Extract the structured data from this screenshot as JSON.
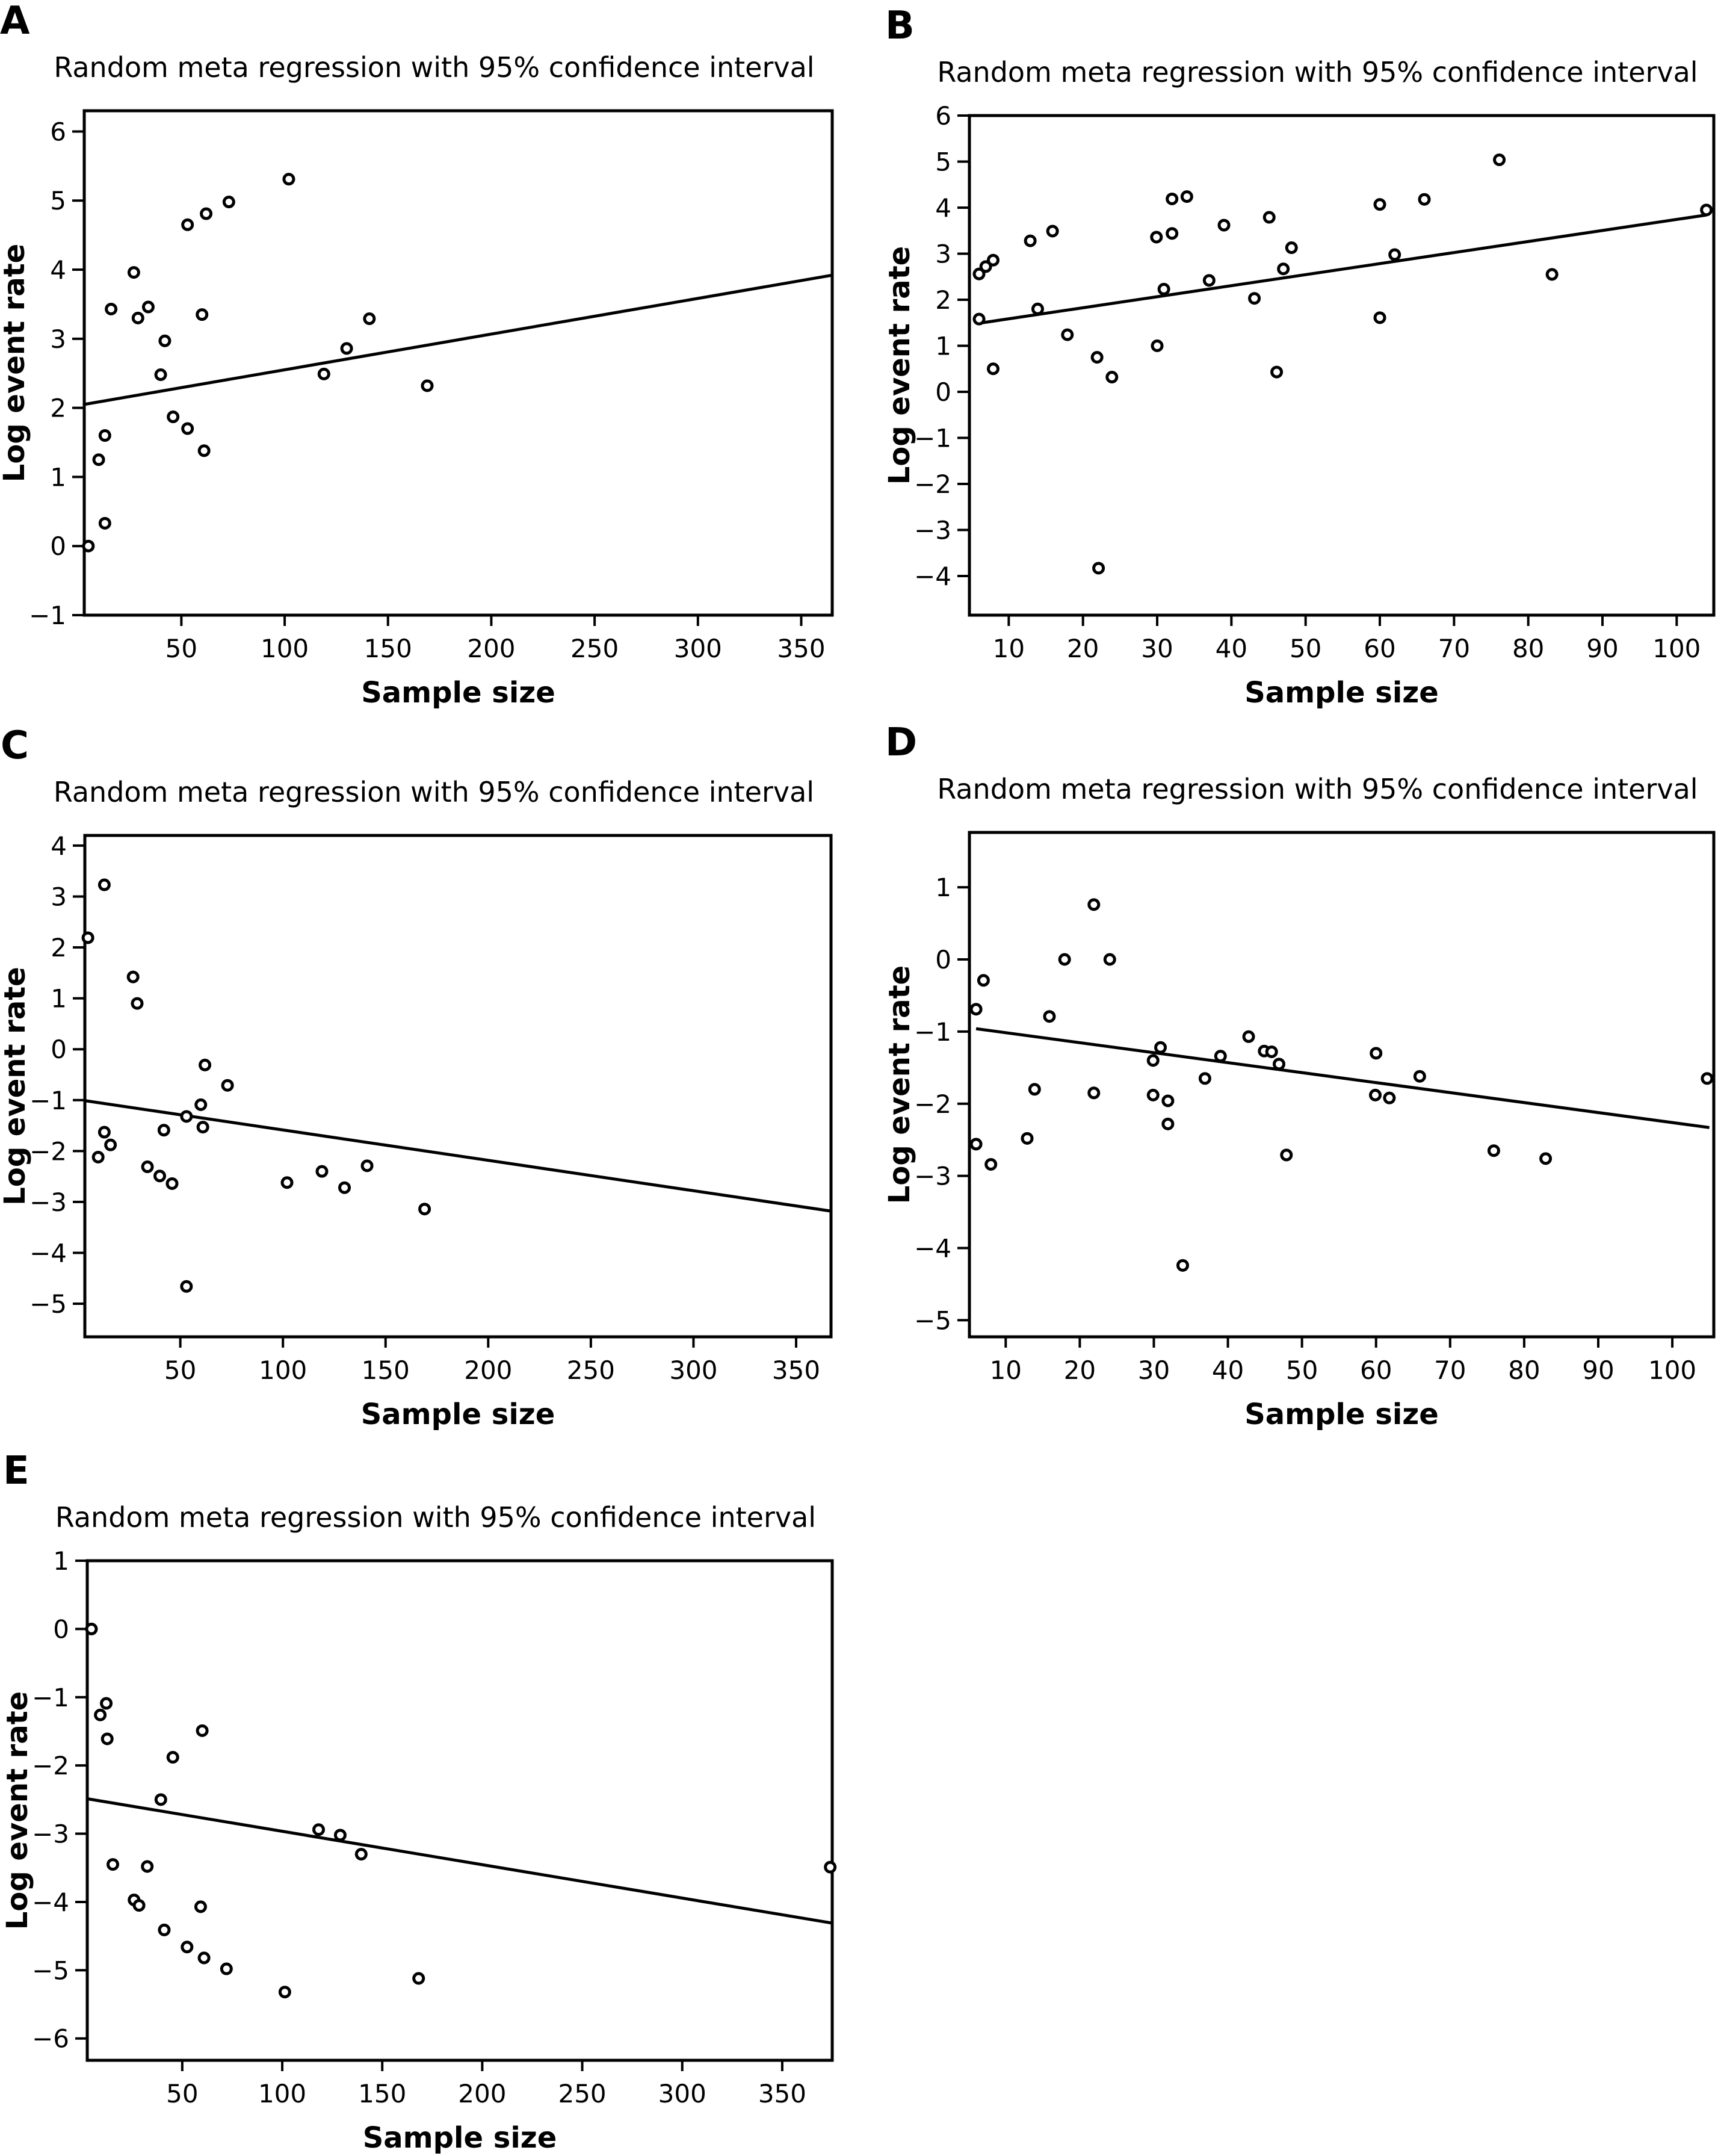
{
  "chart_data": [
    {
      "panel": "A",
      "type": "scatter",
      "title": "Random meta regression with 95% confidence interval",
      "xlabel": "Sample size",
      "ylabel": "Log event rate",
      "xlim": [
        3,
        365
      ],
      "ylim": [
        -1,
        6.3
      ],
      "xticks": [
        50,
        100,
        150,
        200,
        250,
        300,
        350
      ],
      "yticks": [
        -1,
        0,
        1,
        2,
        3,
        4,
        5,
        6
      ],
      "grid": false,
      "points": [
        [
          5,
          0
        ],
        [
          10,
          1.25
        ],
        [
          13,
          1.6
        ],
        [
          13,
          0.33
        ],
        [
          16,
          3.43
        ],
        [
          27,
          3.96
        ],
        [
          29,
          3.3
        ],
        [
          34,
          3.46
        ],
        [
          40,
          2.48
        ],
        [
          42,
          2.97
        ],
        [
          46,
          1.87
        ],
        [
          53,
          4.65
        ],
        [
          53,
          1.7
        ],
        [
          60,
          3.35
        ],
        [
          62,
          4.81
        ],
        [
          61,
          1.38
        ],
        [
          73,
          4.98
        ],
        [
          102,
          5.31
        ],
        [
          119,
          2.49
        ],
        [
          130,
          2.86
        ],
        [
          141,
          3.29
        ],
        [
          169,
          2.32
        ]
      ],
      "regression_line": [
        [
          3,
          2.05
        ],
        [
          365,
          3.92
        ]
      ]
    },
    {
      "panel": "B",
      "type": "scatter",
      "title": "Random meta regression with 95% confidence interval",
      "xlabel": "Sample size",
      "ylabel": "Log event rate",
      "xlim": [
        4.7,
        105
      ],
      "ylim": [
        -4.85,
        6
      ],
      "xticks": [
        10,
        20,
        30,
        40,
        50,
        60,
        70,
        80,
        90,
        100
      ],
      "yticks": [
        -4,
        -3,
        -2,
        -1,
        0,
        1,
        2,
        3,
        4,
        5,
        6
      ],
      "grid": false,
      "points": [
        [
          6,
          2.56
        ],
        [
          6.9,
          2.72
        ],
        [
          7.9,
          2.86
        ],
        [
          6,
          1.58
        ],
        [
          7.9,
          0.5
        ],
        [
          12.9,
          3.28
        ],
        [
          13.9,
          1.8
        ],
        [
          15.9,
          3.49
        ],
        [
          17.9,
          1.24
        ],
        [
          21.9,
          0.75
        ],
        [
          22.1,
          -3.83
        ],
        [
          23.9,
          0.32
        ],
        [
          29.9,
          3.36
        ],
        [
          30,
          1.0
        ],
        [
          30.9,
          2.23
        ],
        [
          32,
          4.19
        ],
        [
          32,
          3.44
        ],
        [
          34,
          4.24
        ],
        [
          37,
          2.42
        ],
        [
          39,
          3.62
        ],
        [
          43.1,
          2.03
        ],
        [
          45.1,
          3.79
        ],
        [
          46.1,
          0.43
        ],
        [
          47,
          2.67
        ],
        [
          48.1,
          3.13
        ],
        [
          60,
          4.07
        ],
        [
          60,
          1.61
        ],
        [
          62,
          2.98
        ],
        [
          66,
          4.18
        ],
        [
          76.1,
          5.04
        ],
        [
          83.2,
          2.55
        ],
        [
          104,
          3.95
        ]
      ],
      "regression_line": [
        [
          6,
          1.49
        ],
        [
          104,
          3.84
        ]
      ]
    },
    {
      "panel": "C",
      "type": "scatter",
      "title": "Random meta regression with 95% confidence interval",
      "xlabel": "Sample size",
      "ylabel": "Log event rate",
      "xlim": [
        3.5,
        367
      ],
      "ylim": [
        -5.65,
        4.2
      ],
      "xticks": [
        50,
        100,
        150,
        200,
        250,
        300,
        350
      ],
      "yticks": [
        -5,
        -4,
        -3,
        -2,
        -1,
        0,
        1,
        2,
        3,
        4
      ],
      "grid": false,
      "points": [
        [
          5,
          2.19
        ],
        [
          13,
          3.23
        ],
        [
          27,
          1.42
        ],
        [
          29,
          0.9
        ],
        [
          62,
          -0.31
        ],
        [
          73,
          -0.71
        ],
        [
          60,
          -1.09
        ],
        [
          53,
          -1.32
        ],
        [
          61,
          -1.53
        ],
        [
          42,
          -1.59
        ],
        [
          13,
          -1.63
        ],
        [
          16,
          -1.88
        ],
        [
          10,
          -2.12
        ],
        [
          34,
          -2.31
        ],
        [
          40,
          -2.49
        ],
        [
          46,
          -2.64
        ],
        [
          102,
          -2.62
        ],
        [
          119,
          -2.4
        ],
        [
          130,
          -2.72
        ],
        [
          141,
          -2.29
        ],
        [
          169,
          -3.14
        ],
        [
          53,
          -4.66
        ]
      ],
      "regression_line": [
        [
          3.5,
          -1.01
        ],
        [
          367,
          -3.18
        ]
      ]
    },
    {
      "panel": "D",
      "type": "scatter",
      "title": "Random meta regression with 95% confidence interval",
      "xlabel": "Sample size",
      "ylabel": "Log event rate",
      "xlim": [
        5.1,
        105.6
      ],
      "ylim": [
        -5.23,
        1.76
      ],
      "xticks": [
        10,
        20,
        30,
        40,
        50,
        60,
        70,
        80,
        90,
        100
      ],
      "yticks": [
        -5,
        -4,
        -3,
        -2,
        -1,
        0,
        1
      ],
      "grid": false,
      "points": [
        [
          21.9,
          0.76
        ],
        [
          17.95,
          0
        ],
        [
          24.05,
          0
        ],
        [
          7,
          -0.29
        ],
        [
          6,
          -0.69
        ],
        [
          15.9,
          -0.79
        ],
        [
          42.8,
          -1.07
        ],
        [
          30.9,
          -1.22
        ],
        [
          44.9,
          -1.27
        ],
        [
          45.9,
          -1.28
        ],
        [
          60,
          -1.3
        ],
        [
          39,
          -1.34
        ],
        [
          29.9,
          -1.4
        ],
        [
          46.9,
          -1.45
        ],
        [
          65.9,
          -1.62
        ],
        [
          36.9,
          -1.65
        ],
        [
          104.7,
          -1.65
        ],
        [
          13.9,
          -1.8
        ],
        [
          21.9,
          -1.85
        ],
        [
          29.9,
          -1.88
        ],
        [
          59.9,
          -1.88
        ],
        [
          61.8,
          -1.92
        ],
        [
          31.9,
          -1.96
        ],
        [
          31.9,
          -2.28
        ],
        [
          12.9,
          -2.48
        ],
        [
          6,
          -2.56
        ],
        [
          75.9,
          -2.65
        ],
        [
          47.9,
          -2.71
        ],
        [
          82.9,
          -2.76
        ],
        [
          8,
          -2.84
        ],
        [
          33.9,
          -4.24
        ]
      ],
      "regression_line": [
        [
          6,
          -0.96
        ],
        [
          105,
          -2.33
        ]
      ]
    },
    {
      "panel": "E",
      "type": "scatter",
      "title": "Random meta regression with 95% confidence interval",
      "xlabel": "Sample size",
      "ylabel": "Log event rate",
      "xlim": [
        2.5,
        375
      ],
      "ylim": [
        -6.32,
        1
      ],
      "xticks": [
        50,
        100,
        150,
        200,
        250,
        300,
        350
      ],
      "yticks": [
        -6,
        -5,
        -4,
        -3,
        -2,
        -1,
        0,
        1
      ],
      "grid": false,
      "points": [
        [
          4.6,
          0
        ],
        [
          12,
          -1.09
        ],
        [
          9,
          -1.26
        ],
        [
          12.5,
          -1.61
        ],
        [
          60,
          -1.49
        ],
        [
          45.3,
          -1.88
        ],
        [
          39.3,
          -2.5
        ],
        [
          118.2,
          -2.94
        ],
        [
          129,
          -3.02
        ],
        [
          139.5,
          -3.3
        ],
        [
          15.3,
          -3.45
        ],
        [
          32.5,
          -3.48
        ],
        [
          374,
          -3.49
        ],
        [
          25.9,
          -3.97
        ],
        [
          28.4,
          -4.05
        ],
        [
          59.2,
          -4.07
        ],
        [
          41,
          -4.41
        ],
        [
          52.4,
          -4.66
        ],
        [
          60.9,
          -4.82
        ],
        [
          72.1,
          -4.98
        ],
        [
          168.2,
          -5.12
        ],
        [
          101.3,
          -5.32
        ]
      ],
      "regression_line": [
        [
          3,
          -2.49
        ],
        [
          375,
          -4.31
        ]
      ]
    }
  ]
}
